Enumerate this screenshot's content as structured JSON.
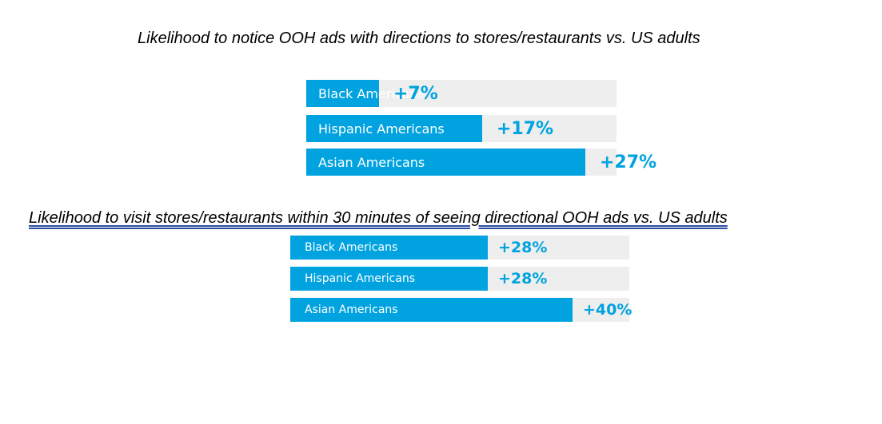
{
  "chart_data": [
    {
      "type": "bar",
      "orientation": "horizontal",
      "title": "Likelihood to notice OOH ads with directions to stores/restaurants vs. US adults",
      "categories": [
        "Black Americans",
        "Hispanic Americans",
        "Asian Americans"
      ],
      "values": [
        7,
        17,
        27
      ],
      "value_labels": [
        "+7%",
        "+17%",
        "+27%"
      ],
      "unit": "%",
      "xlim": [
        0,
        30
      ],
      "grid": false,
      "legend": "none",
      "bar_color": "#00a3e0",
      "track_color": "#eeeeee",
      "value_color": "#00a3e0"
    },
    {
      "type": "bar",
      "orientation": "horizontal",
      "title": "Likelihood to visit stores/restaurants within 30 minutes of seeing directional OOH ads vs. US adults",
      "categories": [
        "Black Americans",
        "Hispanic Americans",
        "Asian Americans"
      ],
      "values": [
        28,
        28,
        40
      ],
      "value_labels": [
        "+28%",
        "+28%",
        "+40%"
      ],
      "unit": "%",
      "xlim": [
        0,
        48
      ],
      "grid": false,
      "legend": "none",
      "bar_color": "#00a3e0",
      "track_color": "#eeeeee",
      "value_color": "#00a3e0"
    }
  ]
}
